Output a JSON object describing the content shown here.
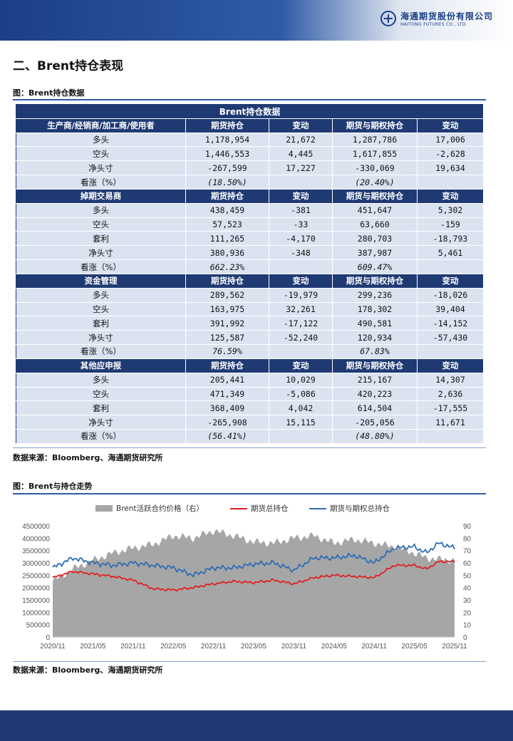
{
  "header": {
    "company_cn": "海通期货股份有限公司",
    "company_en": "HAITONG FUTURES CO., LTD."
  },
  "section_title": "二、Brent持仓表现",
  "table_caption": "图：Brent持仓数据",
  "table": {
    "title": "Brent持仓数据",
    "groups": [
      {
        "header": [
          "生产商/经销商/加工商/使用者",
          "期货持仓",
          "变动",
          "期货与期权持仓",
          "变动"
        ],
        "rows": [
          [
            "多头",
            "1,178,954",
            "21,672",
            "1,287,786",
            "17,006"
          ],
          [
            "空头",
            "1,446,553",
            "4,445",
            "1,617,855",
            "-2,628"
          ],
          [
            "净头寸",
            "-267,599",
            "17,227",
            "-330,069",
            "19,634"
          ],
          [
            "看涨（%）",
            "(18.50%)",
            "",
            "(20.40%)",
            ""
          ]
        ]
      },
      {
        "header": [
          "掉期交易商",
          "期货持仓",
          "变动",
          "期货与期权持仓",
          "变动"
        ],
        "rows": [
          [
            "多头",
            "438,459",
            "-381",
            "451,647",
            "5,302"
          ],
          [
            "空头",
            "57,523",
            "-33",
            "63,660",
            "-159"
          ],
          [
            "套利",
            "111,265",
            "-4,170",
            "280,703",
            "-18,793"
          ],
          [
            "净头寸",
            "380,936",
            "-348",
            "387,987",
            "5,461"
          ],
          [
            "看涨（%）",
            "662.23%",
            "",
            "609.47%",
            ""
          ]
        ]
      },
      {
        "header": [
          "资金管理",
          "期货持仓",
          "变动",
          "期货与期权持仓",
          "变动"
        ],
        "rows": [
          [
            "多头",
            "289,562",
            "-19,979",
            "299,236",
            "-18,026"
          ],
          [
            "空头",
            "163,975",
            "32,261",
            "178,302",
            "39,404"
          ],
          [
            "套利",
            "391,992",
            "-17,122",
            "490,581",
            "-14,152"
          ],
          [
            "净头寸",
            "125,587",
            "-52,240",
            "120,934",
            "-57,430"
          ],
          [
            "看涨（%）",
            "76.59%",
            "",
            "67.83%",
            ""
          ]
        ]
      },
      {
        "header": [
          "其他应申报",
          "期货持仓",
          "变动",
          "期货与期权持仓",
          "变动"
        ],
        "rows": [
          [
            "多头",
            "205,441",
            "10,029",
            "215,167",
            "14,307"
          ],
          [
            "空头",
            "471,349",
            "-5,086",
            "420,223",
            "2,636"
          ],
          [
            "套利",
            "368,409",
            "4,042",
            "614,504",
            "-17,555"
          ],
          [
            "净头寸",
            "-265,908",
            "15,115",
            "-205,056",
            "11,671"
          ],
          [
            "看涨（%）",
            "(56.41%)",
            "",
            "(48.80%)",
            ""
          ]
        ]
      }
    ]
  },
  "table_source": "数据来源：Bloomberg、海通期货研究所",
  "chart_caption": "图：Brent与持仓走势",
  "chart_source": "数据来源：Bloomberg、海通期货研究所",
  "chart_data": {
    "type": "line",
    "title": "",
    "legend": [
      "Brent活跃合约价格（右）",
      "期货总持仓",
      "期货与期权总持仓"
    ],
    "legend_placement": "top",
    "colors": {
      "price_area": "#a6a6a6",
      "futures": "#e02020",
      "futures_options": "#2e6db4"
    },
    "x_ticks": [
      "2020/11",
      "2021/05",
      "2021/11",
      "2022/05",
      "2022/11",
      "2023/05",
      "2023/11",
      "2024/05",
      "2024/11",
      "2025/05",
      "2025/11"
    ],
    "y_left_ticks": [
      "0",
      "500000",
      "1000000",
      "1500000",
      "2000000",
      "2500000",
      "3000000",
      "3500000",
      "4000000",
      "4500000"
    ],
    "y_right_ticks": [
      "0",
      "10",
      "20",
      "30",
      "40",
      "50",
      "60",
      "70",
      "80",
      "90"
    ],
    "ylim_left": [
      0,
      4500000
    ],
    "ylim_right": [
      0,
      90
    ],
    "t": [
      0,
      0.05,
      0.1,
      0.15,
      0.2,
      0.25,
      0.3,
      0.35,
      0.4,
      0.45,
      0.5,
      0.55,
      0.6,
      0.65,
      0.7,
      0.75,
      0.8,
      0.85,
      0.9,
      0.93,
      0.96,
      1.0
    ],
    "series": [
      {
        "name": "Brent活跃合约价格（右）",
        "axis": "right",
        "type": "area",
        "values": [
          45,
          55,
          62,
          68,
          72,
          75,
          82,
          80,
          86,
          82,
          77,
          76,
          80,
          82,
          76,
          79,
          76,
          73,
          68,
          64,
          63,
          62
        ]
      },
      {
        "name": "期货总持仓",
        "axis": "left",
        "type": "line",
        "values": [
          2400000,
          2650000,
          2550000,
          2450000,
          2300000,
          1950000,
          1900000,
          2000000,
          2150000,
          2250000,
          2200000,
          2300000,
          2150000,
          2400000,
          2500000,
          2450000,
          2400000,
          2900000,
          2900000,
          2750000,
          3050000,
          3050000
        ]
      },
      {
        "name": "期货与期权总持仓",
        "axis": "left",
        "type": "line",
        "values": [
          2800000,
          3200000,
          3000000,
          2900000,
          3000000,
          2900000,
          2800000,
          2500000,
          2800000,
          2800000,
          2950000,
          3000000,
          2700000,
          3200000,
          3200000,
          3300000,
          3000000,
          3600000,
          3650000,
          3400000,
          3800000,
          3600000
        ]
      }
    ]
  }
}
